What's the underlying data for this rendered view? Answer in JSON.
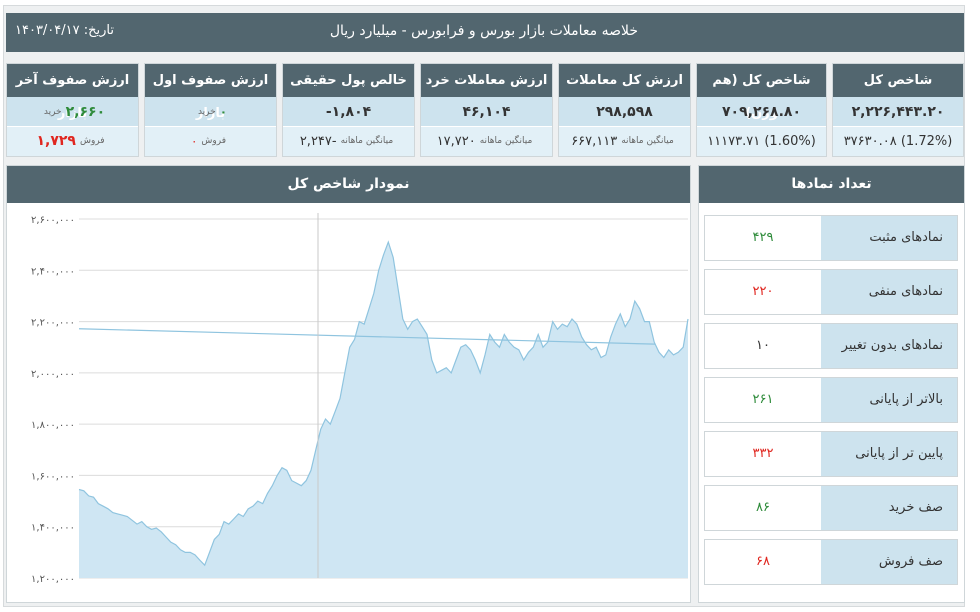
{
  "header": {
    "title": "خلاصه معاملات بازار بورس و فرابورس - میلیارد ریال",
    "date_label": "تاریخ:",
    "date_value": "۱۴۰۳/۰۴/۱۷"
  },
  "cards": [
    {
      "title": "شاخص کل",
      "value": "۲,۲۲۶,۴۴۳.۲۰",
      "change": "۳۷۶۳۰.۰۸ (1.72%)",
      "change_color": "#2e8b3a"
    },
    {
      "title": "شاخص کل (هم وزن)",
      "value": "۷۰۹,۲۶۸.۸۰",
      "change": "۱۱۱۷۳.۷۱ (1.60%)",
      "change_color": "#2e8b3a"
    },
    {
      "title": "ارزش کل معاملات",
      "value": "۲۹۸,۵۹۸",
      "avg_label": "میانگین ماهانه",
      "avg_value": "۶۶۷,۱۱۳"
    },
    {
      "title": "ارزش معاملات خرد",
      "value": "۴۶,۱۰۴",
      "avg_label": "میانگین ماهانه",
      "avg_value": "۱۷,۷۲۰"
    },
    {
      "title": "خالص پول حقیقی",
      "value": "-۱,۸۰۴",
      "avg_label": "میانگین ماهانه",
      "avg_value": "-۲,۲۴۷"
    },
    {
      "title": "ارزش صفوف اول بازار",
      "buy_label": "خرید",
      "buy_value": "۰",
      "sell_label": "فروش",
      "sell_value": "۰"
    },
    {
      "title": "ارزش صفوف آخر بازار",
      "buy_label": "خرید",
      "buy_value": "۲,۶۶۰",
      "sell_label": "فروش",
      "sell_value": "۱,۷۲۹"
    }
  ],
  "chart_panel": {
    "title": "نمودار شاخص کل"
  },
  "chart_data": {
    "type": "area",
    "ylim": [
      1200000,
      2600000
    ],
    "y_ticks": [
      "۲,۶۰۰,۰۰۰",
      "۲,۴۰۰,۰۰۰",
      "۲,۲۰۰,۰۰۰",
      "۲,۰۰۰,۰۰۰",
      "۱,۸۰۰,۰۰۰",
      "۱,۶۰۰,۰۰۰",
      "۱,۴۰۰,۰۰۰",
      "۱,۲۰۰,۰۰۰"
    ],
    "y_tick_values": [
      2600000,
      2400000,
      2200000,
      2000000,
      1800000,
      1600000,
      1400000,
      1200000
    ],
    "values": [
      1545000,
      1540000,
      1520000,
      1515000,
      1490000,
      1480000,
      1470000,
      1455000,
      1450000,
      1445000,
      1440000,
      1425000,
      1410000,
      1420000,
      1400000,
      1390000,
      1395000,
      1380000,
      1360000,
      1340000,
      1330000,
      1310000,
      1300000,
      1300000,
      1290000,
      1270000,
      1250000,
      1300000,
      1350000,
      1370000,
      1420000,
      1410000,
      1430000,
      1450000,
      1440000,
      1470000,
      1480000,
      1500000,
      1490000,
      1530000,
      1560000,
      1600000,
      1630000,
      1620000,
      1580000,
      1570000,
      1560000,
      1580000,
      1620000,
      1700000,
      1780000,
      1820000,
      1800000,
      1850000,
      1900000,
      2000000,
      2100000,
      2130000,
      2200000,
      2190000,
      2250000,
      2310000,
      2400000,
      2460000,
      2510000,
      2450000,
      2330000,
      2210000,
      2170000,
      2200000,
      2210000,
      2180000,
      2150000,
      2050000,
      2000000,
      2010000,
      2020000,
      2000000,
      2050000,
      2100000,
      2110000,
      2090000,
      2050000,
      2000000,
      2070000,
      2150000,
      2120000,
      2100000,
      2150000,
      2120000,
      2100000,
      2090000,
      2050000,
      2080000,
      2100000,
      2150000,
      2100000,
      2120000,
      2200000,
      2170000,
      2190000,
      2180000,
      2210000,
      2190000,
      2140000,
      2110000,
      2090000,
      2100000,
      2060000,
      2070000,
      2140000,
      2190000,
      2230000,
      2180000,
      2210000,
      2280000,
      2250000,
      2200000,
      2200000,
      2120000,
      2080000,
      2060000,
      2090000,
      2070000,
      2080000,
      2100000,
      2210000
    ],
    "reference_line": {
      "from": 2172000,
      "to": 2112000
    }
  },
  "counts_panel": {
    "title": "تعداد نمادها",
    "rows": [
      {
        "label": "نمادهای مثبت",
        "value": "۴۲۹",
        "color": "#2e8b3a"
      },
      {
        "label": "نمادهای منفی",
        "value": "۲۲۰",
        "color": "#e0261f"
      },
      {
        "label": "نمادهای بدون تغییر",
        "value": "۱۰",
        "color": "#333333"
      },
      {
        "label": "بالاتر از پایانی",
        "value": "۲۶۱",
        "color": "#2e8b3a"
      },
      {
        "label": "پایین تر از پایانی",
        "value": "۳۳۲",
        "color": "#e0261f"
      },
      {
        "label": "صف خرید",
        "value": "۸۶",
        "color": "#2e8b3a"
      },
      {
        "label": "صف فروش",
        "value": "۶۸",
        "color": "#e0261f"
      }
    ]
  }
}
